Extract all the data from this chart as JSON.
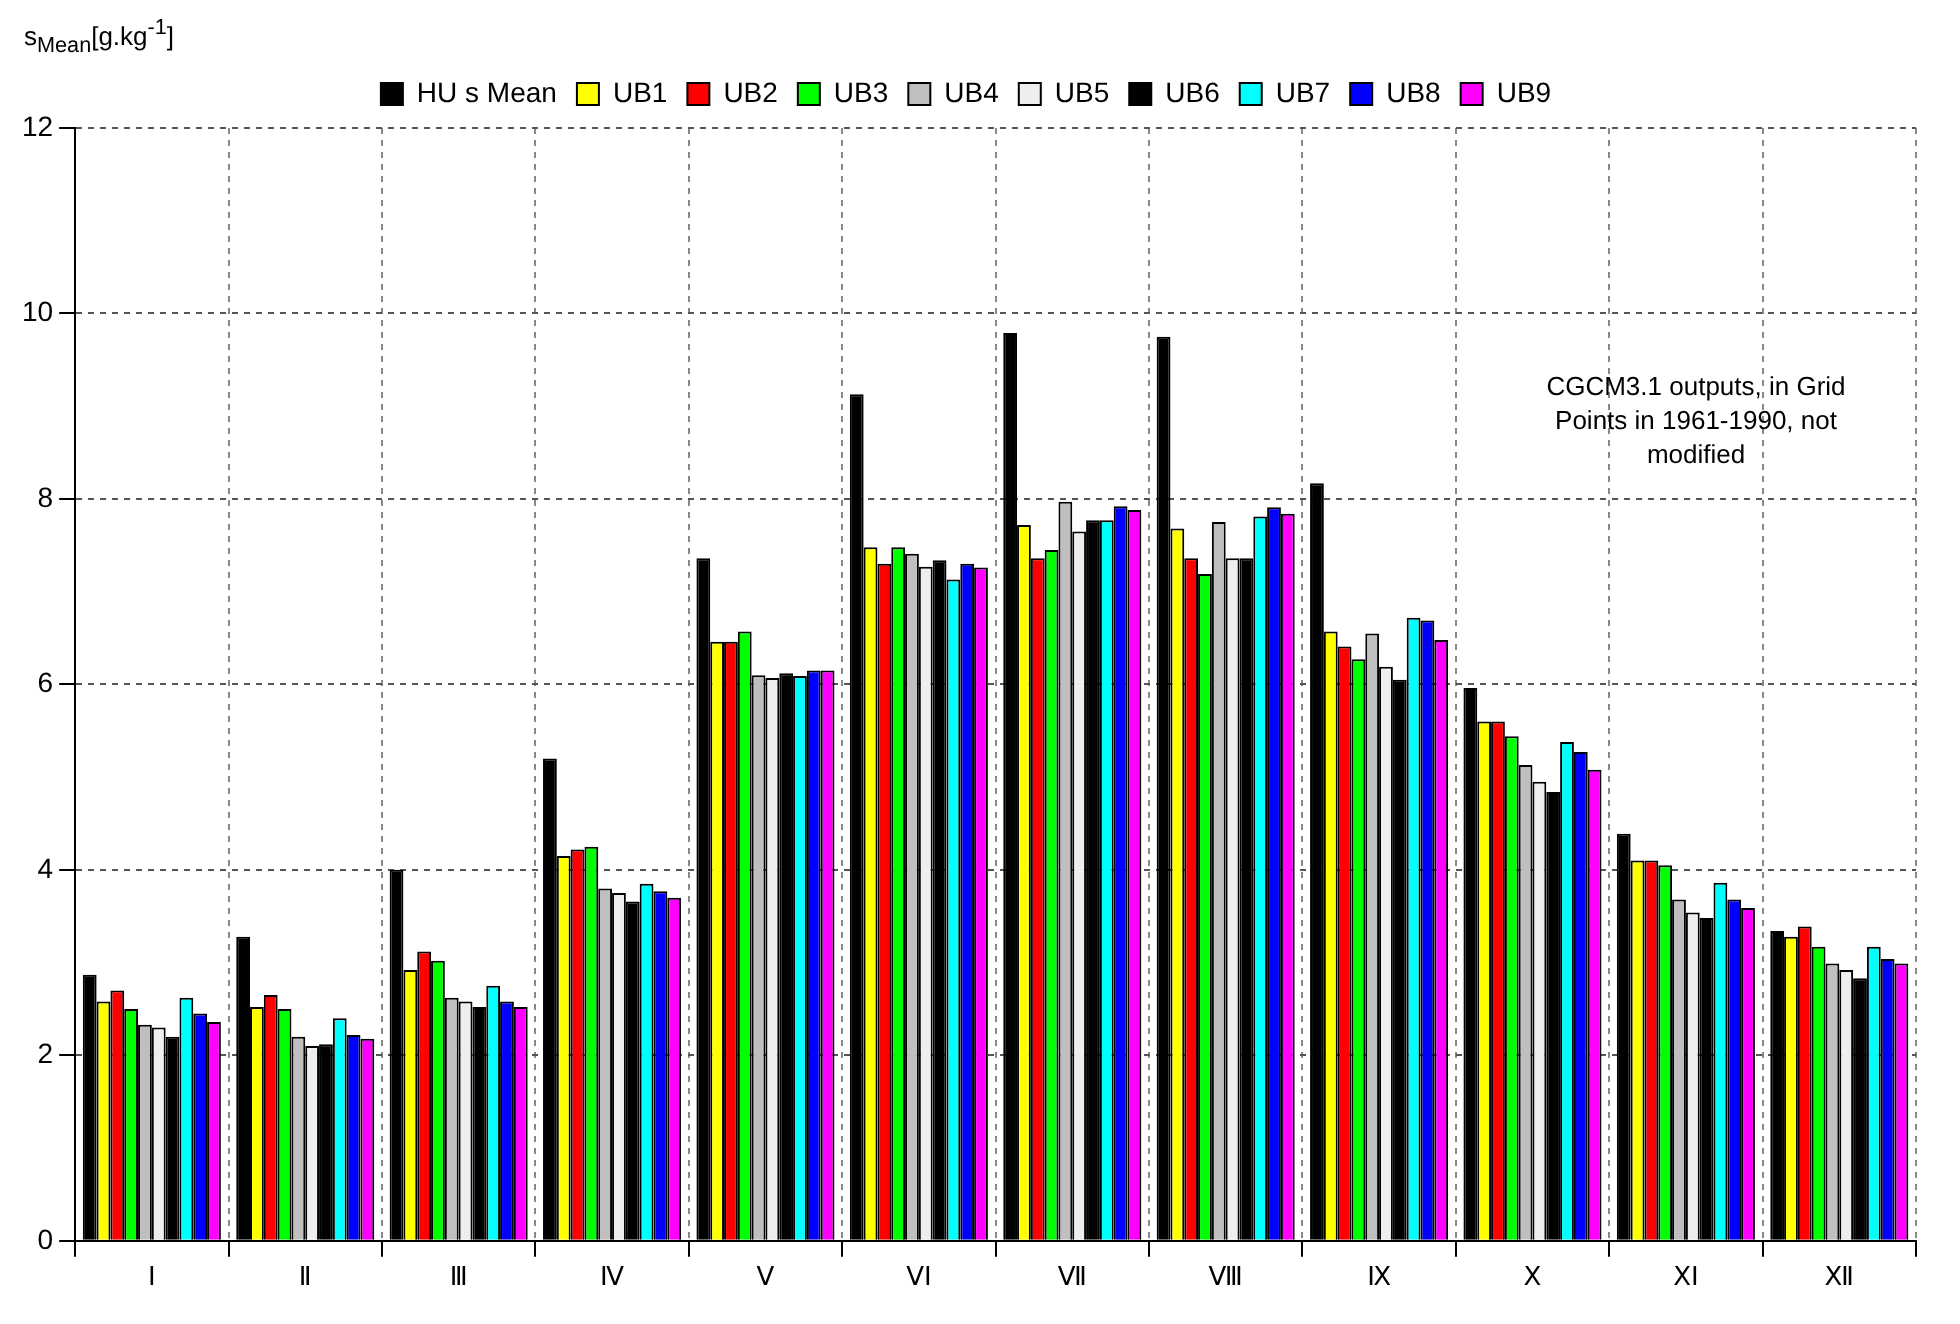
{
  "chart_data": {
    "type": "bar",
    "ylabel": "s$_{Mean}$[g.kg$^{-1}$]",
    "annotations": [
      "CGCM3.1 outputs, in Grid Points in 1961-1990, not modified"
    ],
    "categories": [
      "I",
      "Ⅱ",
      "Ⅲ",
      "Ⅳ",
      "V",
      "VI",
      "Ⅶ",
      "Ⅷ",
      "Ⅸ",
      "X",
      "XI",
      "Ⅻ"
    ],
    "ylim": [
      0,
      12
    ],
    "yticks": [
      0,
      2,
      4,
      6,
      8,
      10,
      12
    ],
    "grid": true,
    "legend": "top",
    "series": [
      {
        "name": "HU s Mean",
        "color": "#000000",
        "values": [
          2.87,
          3.28,
          4.0,
          5.2,
          7.36,
          9.13,
          9.79,
          9.75,
          8.17,
          5.96,
          4.39,
          3.34
        ]
      },
      {
        "name": "UB1",
        "color": "#ffff00",
        "values": [
          2.58,
          2.52,
          2.92,
          4.15,
          6.46,
          7.48,
          7.72,
          7.68,
          6.57,
          5.6,
          4.1,
          3.28
        ]
      },
      {
        "name": "UB2",
        "color": "#ff0000",
        "values": [
          2.7,
          2.65,
          3.12,
          4.22,
          6.46,
          7.3,
          7.36,
          7.36,
          6.41,
          5.6,
          4.1,
          3.39
        ]
      },
      {
        "name": "UB3",
        "color": "#00ff00",
        "values": [
          2.5,
          2.5,
          3.02,
          4.25,
          6.57,
          7.48,
          7.45,
          7.19,
          6.27,
          5.44,
          4.05,
          3.17
        ]
      },
      {
        "name": "UB4",
        "color": "#bfbfbf",
        "values": [
          2.33,
          2.2,
          2.62,
          3.8,
          6.1,
          7.41,
          7.97,
          7.75,
          6.55,
          5.13,
          3.68,
          2.99
        ]
      },
      {
        "name": "UB5",
        "color": "#eeeeee",
        "values": [
          2.3,
          2.1,
          2.58,
          3.75,
          6.07,
          7.27,
          7.65,
          7.36,
          6.19,
          4.95,
          3.54,
          2.92
        ]
      },
      {
        "name": "UB6",
        "color": "#000000",
        "values": [
          2.2,
          2.12,
          2.52,
          3.66,
          6.12,
          7.34,
          7.77,
          7.36,
          6.05,
          4.84,
          3.48,
          2.83
        ]
      },
      {
        "name": "UB7",
        "color": "#00ffff",
        "values": [
          2.62,
          2.4,
          2.75,
          3.85,
          6.09,
          7.13,
          7.77,
          7.81,
          6.72,
          5.38,
          3.86,
          3.17
        ]
      },
      {
        "name": "UB8",
        "color": "#0000ff",
        "values": [
          2.45,
          2.22,
          2.58,
          3.77,
          6.15,
          7.3,
          7.92,
          7.91,
          6.69,
          5.27,
          3.68,
          3.04
        ]
      },
      {
        "name": "UB9",
        "color": "#ff00ff",
        "values": [
          2.36,
          2.18,
          2.52,
          3.7,
          6.15,
          7.26,
          7.88,
          7.84,
          6.48,
          5.08,
          3.59,
          2.99
        ]
      }
    ]
  }
}
